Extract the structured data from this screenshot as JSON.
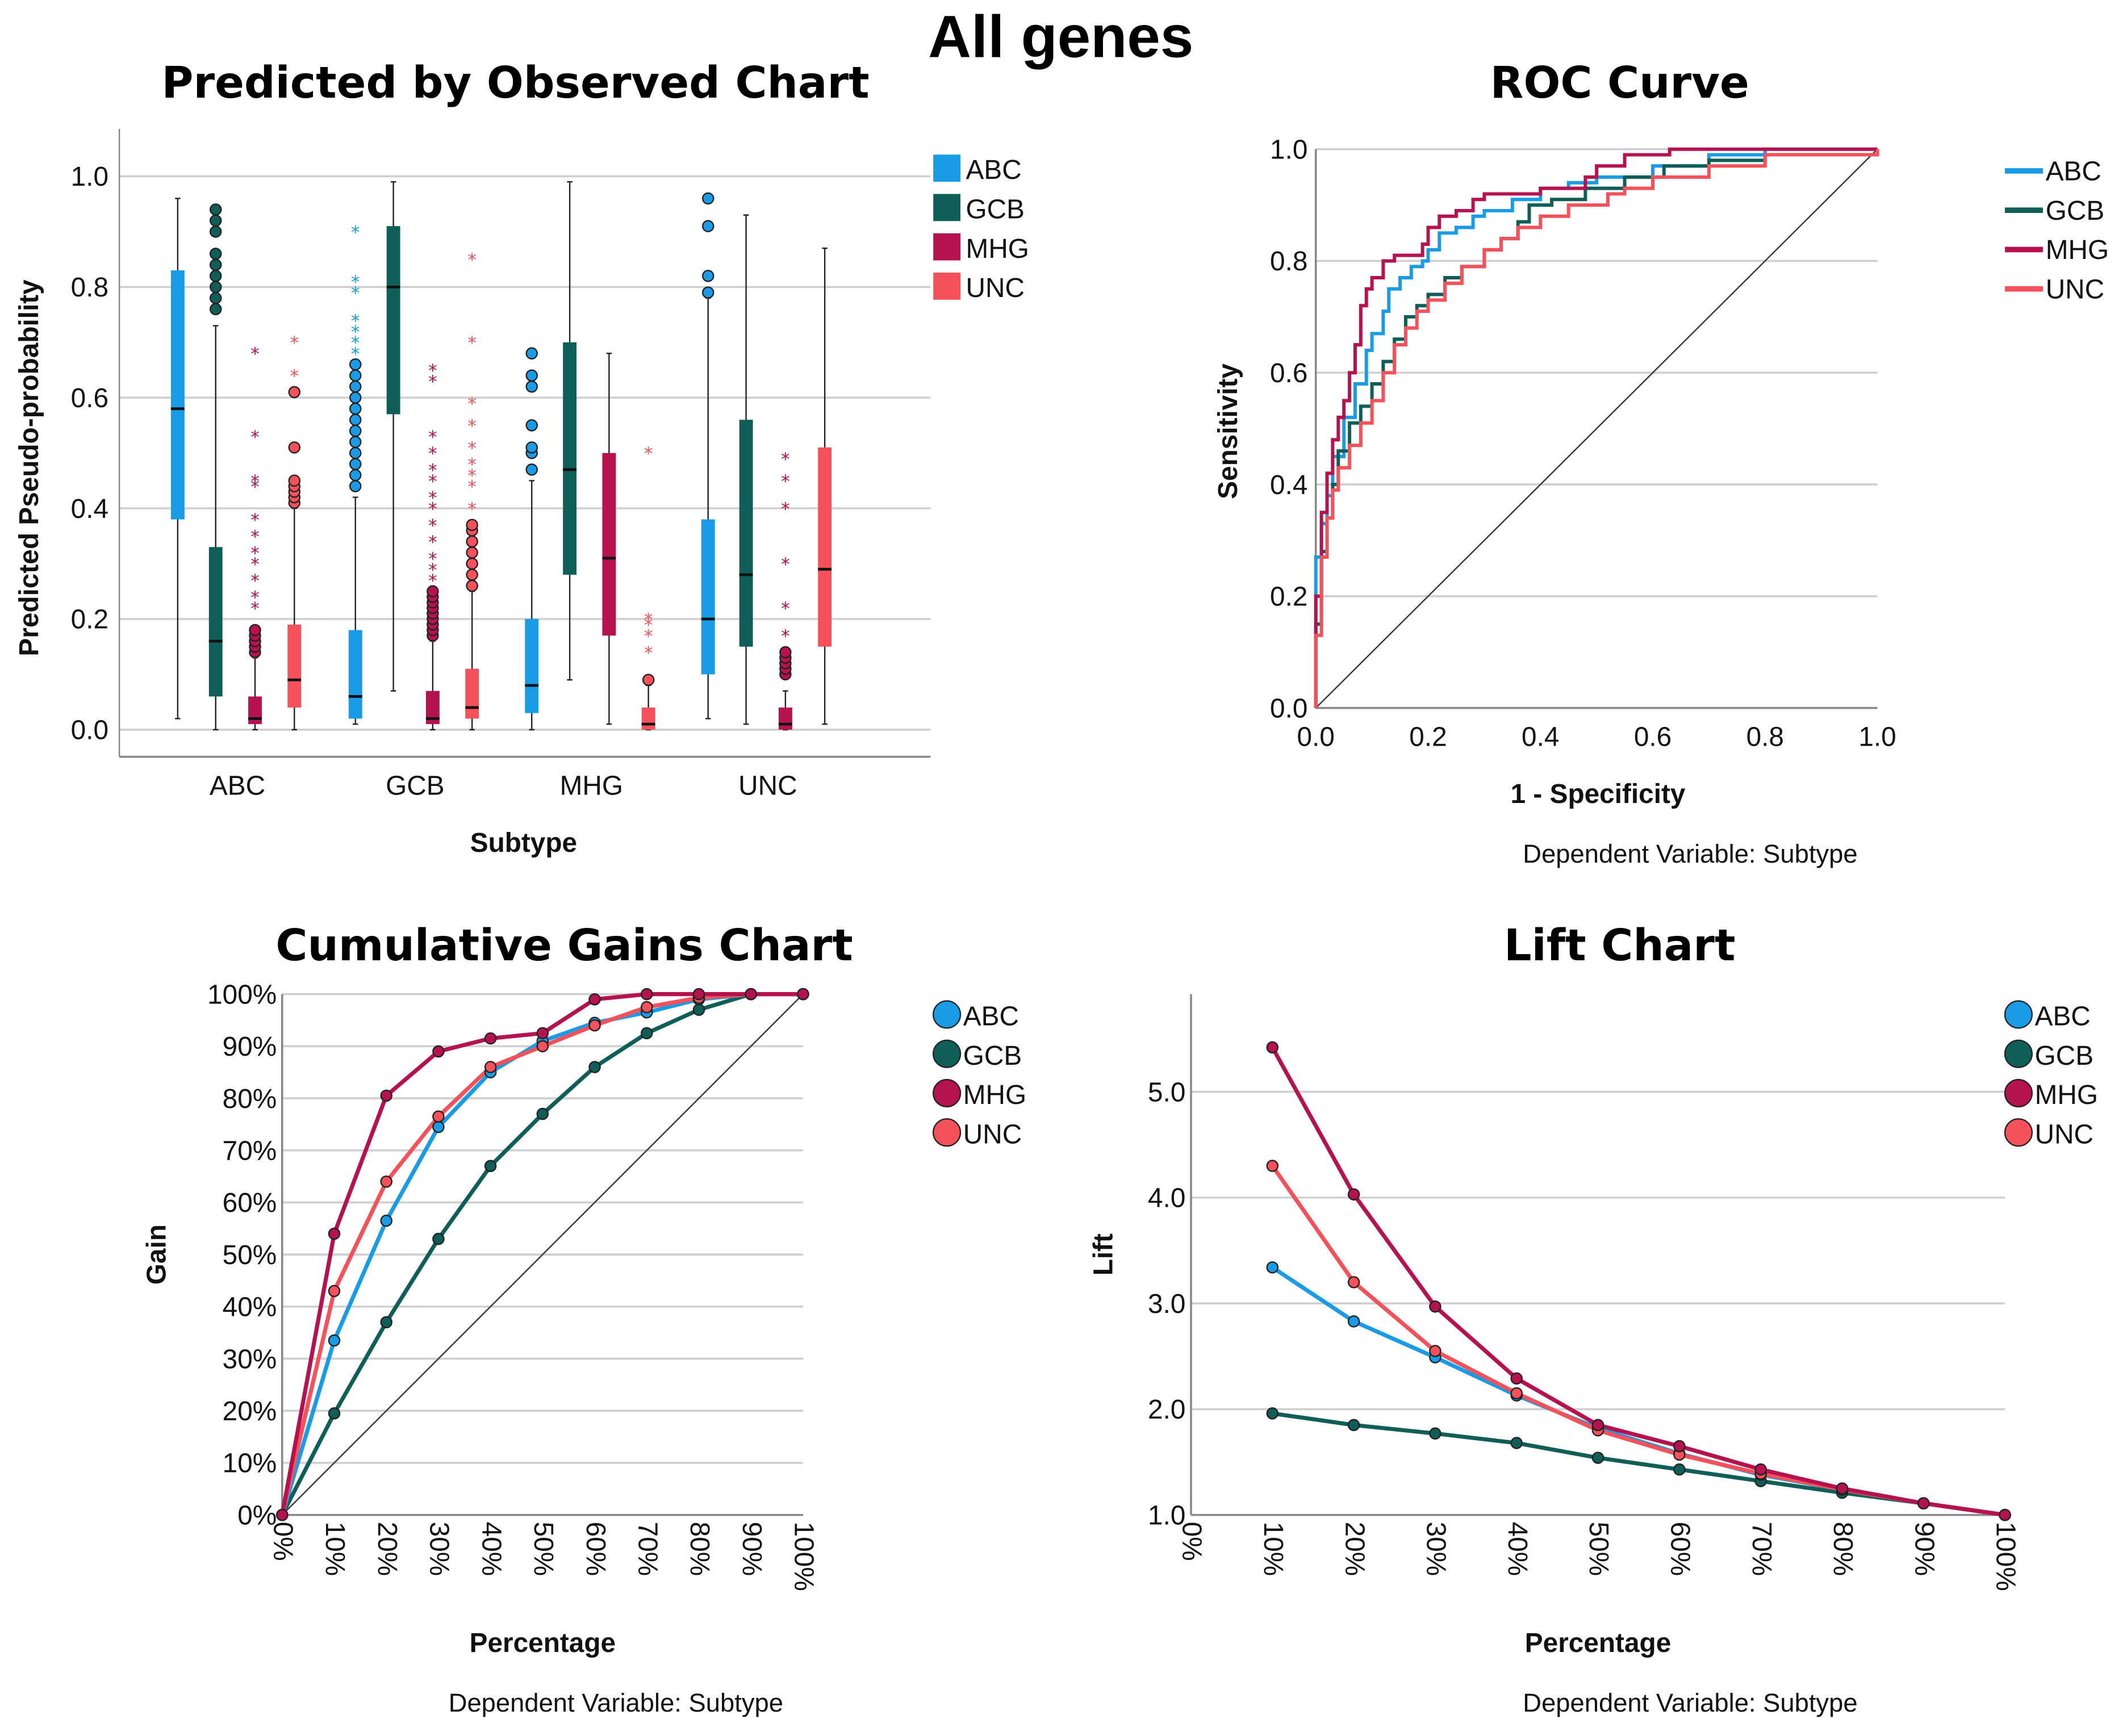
{
  "page_title": "All genes",
  "colors": {
    "ABC": "#1a9be6",
    "GCB": "#0f5f58",
    "MHG": "#b5124f",
    "UNC": "#f5515a"
  },
  "legend": [
    "ABC",
    "GCB",
    "MHG",
    "UNC"
  ],
  "chart_data": [
    {
      "id": "boxplot",
      "type": "box",
      "title": "Predicted by Observed Chart",
      "xlabel": "Subtype",
      "ylabel": "Predicted Pseudo-probability",
      "categories": [
        "ABC",
        "GCB",
        "MHG",
        "UNC"
      ],
      "ylim": [
        -0.05,
        1.05
      ],
      "yticks": [
        "0.0",
        "0.2",
        "0.4",
        "0.6",
        "0.8",
        "1.0"
      ],
      "grid": true,
      "legend_position": "top-right",
      "series": [
        {
          "name": "ABC",
          "boxes": [
            {
              "min": 0.02,
              "q1": 0.38,
              "median": 0.58,
              "q3": 0.83,
              "max": 0.96,
              "outliers": [],
              "extremes": []
            },
            {
              "min": 0.01,
              "q1": 0.02,
              "median": 0.06,
              "q3": 0.18,
              "max": 0.42,
              "outliers": [
                0.44,
                0.46,
                0.48,
                0.5,
                0.52,
                0.54,
                0.56,
                0.58,
                0.6,
                0.62,
                0.64,
                0.66
              ],
              "extremes": [
                0.68,
                0.7,
                0.72,
                0.74,
                0.79,
                0.81,
                0.9
              ]
            },
            {
              "min": 0.0,
              "q1": 0.03,
              "median": 0.08,
              "q3": 0.2,
              "max": 0.45,
              "outliers": [
                0.47,
                0.5,
                0.51,
                0.55,
                0.62,
                0.64,
                0.68
              ],
              "extremes": []
            },
            {
              "min": 0.02,
              "q1": 0.1,
              "median": 0.2,
              "q3": 0.38,
              "max": 0.78,
              "outliers": [
                0.79,
                0.82,
                0.91,
                0.96
              ],
              "extremes": []
            }
          ]
        },
        {
          "name": "GCB",
          "boxes": [
            {
              "min": 0.0,
              "q1": 0.06,
              "median": 0.16,
              "q3": 0.33,
              "max": 0.73,
              "outliers": [
                0.76,
                0.78,
                0.8,
                0.82,
                0.84,
                0.86,
                0.9,
                0.92,
                0.94
              ],
              "extremes": []
            },
            {
              "min": 0.07,
              "q1": 0.57,
              "median": 0.8,
              "q3": 0.91,
              "max": 0.99,
              "outliers": [],
              "extremes": []
            },
            {
              "min": 0.09,
              "q1": 0.28,
              "median": 0.47,
              "q3": 0.7,
              "max": 0.99,
              "outliers": [],
              "extremes": []
            },
            {
              "min": 0.01,
              "q1": 0.15,
              "median": 0.28,
              "q3": 0.56,
              "max": 0.93,
              "outliers": [],
              "extremes": []
            }
          ]
        },
        {
          "name": "MHG",
          "boxes": [
            {
              "min": 0.0,
              "q1": 0.01,
              "median": 0.02,
              "q3": 0.06,
              "max": 0.13,
              "outliers": [
                0.14,
                0.15,
                0.16,
                0.17,
                0.18
              ],
              "extremes": [
                0.22,
                0.24,
                0.27,
                0.3,
                0.32,
                0.35,
                0.38,
                0.44,
                0.45,
                0.53,
                0.68
              ]
            },
            {
              "min": 0.0,
              "q1": 0.01,
              "median": 0.02,
              "q3": 0.07,
              "max": 0.16,
              "outliers": [
                0.17,
                0.18,
                0.19,
                0.2,
                0.21,
                0.22,
                0.23,
                0.24,
                0.25
              ],
              "extremes": [
                0.27,
                0.29,
                0.31,
                0.34,
                0.37,
                0.4,
                0.42,
                0.45,
                0.47,
                0.5,
                0.53,
                0.63,
                0.65
              ]
            },
            {
              "min": 0.01,
              "q1": 0.17,
              "median": 0.31,
              "q3": 0.5,
              "max": 0.68,
              "outliers": [],
              "extremes": []
            },
            {
              "min": 0.0,
              "q1": 0.0,
              "median": 0.01,
              "q3": 0.04,
              "max": 0.07,
              "outliers": [
                0.1,
                0.11,
                0.12,
                0.13,
                0.14
              ],
              "extremes": [
                0.17,
                0.22,
                0.3,
                0.4,
                0.45,
                0.49
              ]
            }
          ]
        },
        {
          "name": "UNC",
          "boxes": [
            {
              "min": 0.0,
              "q1": 0.04,
              "median": 0.09,
              "q3": 0.19,
              "max": 0.4,
              "outliers": [
                0.41,
                0.42,
                0.43,
                0.44,
                0.45,
                0.51,
                0.61
              ],
              "extremes": [
                0.64,
                0.7
              ]
            },
            {
              "min": 0.0,
              "q1": 0.02,
              "median": 0.04,
              "q3": 0.11,
              "max": 0.25,
              "outliers": [
                0.26,
                0.28,
                0.3,
                0.32,
                0.34,
                0.36,
                0.37
              ],
              "extremes": [
                0.4,
                0.44,
                0.46,
                0.48,
                0.51,
                0.55,
                0.59,
                0.7,
                0.85
              ]
            },
            {
              "min": 0.0,
              "q1": 0.0,
              "median": 0.01,
              "q3": 0.04,
              "max": 0.08,
              "outliers": [
                0.09
              ],
              "extremes": [
                0.14,
                0.17,
                0.19,
                0.2,
                0.5
              ]
            },
            {
              "min": 0.01,
              "q1": 0.15,
              "median": 0.29,
              "q3": 0.51,
              "max": 0.87,
              "outliers": [],
              "extremes": []
            }
          ]
        }
      ]
    },
    {
      "id": "roc",
      "type": "line",
      "title": "ROC Curve",
      "xlabel": "1 - Specificity",
      "ylabel": "Sensitivity",
      "note": "Dependent Variable: Subtype",
      "xlim": [
        0,
        1
      ],
      "ylim": [
        0,
        1
      ],
      "xticks": [
        "0.0",
        "0.2",
        "0.4",
        "0.6",
        "0.8",
        "1.0"
      ],
      "yticks": [
        "0.0",
        "0.2",
        "0.4",
        "0.6",
        "0.8",
        "1.0"
      ],
      "grid": true,
      "legend_position": "top-right",
      "diagonal": true,
      "series": [
        {
          "name": "ABC",
          "x": [
            0,
            0,
            0.01,
            0.02,
            0.03,
            0.05,
            0.07,
            0.09,
            0.1,
            0.12,
            0.13,
            0.15,
            0.17,
            0.19,
            0.2,
            0.22,
            0.25,
            0.28,
            0.3,
            0.35,
            0.4,
            0.45,
            0.5,
            0.6,
            0.7,
            0.8,
            1.0
          ],
          "y": [
            0,
            0.27,
            0.33,
            0.38,
            0.45,
            0.52,
            0.58,
            0.64,
            0.67,
            0.71,
            0.75,
            0.77,
            0.79,
            0.8,
            0.82,
            0.85,
            0.86,
            0.88,
            0.89,
            0.91,
            0.93,
            0.94,
            0.95,
            0.97,
            0.99,
            1.0,
            1.0
          ]
        },
        {
          "name": "GCB",
          "x": [
            0,
            0,
            0.01,
            0.02,
            0.03,
            0.04,
            0.06,
            0.08,
            0.1,
            0.12,
            0.14,
            0.16,
            0.18,
            0.2,
            0.23,
            0.26,
            0.3,
            0.33,
            0.36,
            0.38,
            0.42,
            0.48,
            0.55,
            0.62,
            0.7,
            0.8,
            1.0
          ],
          "y": [
            0,
            0.15,
            0.28,
            0.34,
            0.4,
            0.46,
            0.51,
            0.54,
            0.58,
            0.62,
            0.66,
            0.7,
            0.72,
            0.74,
            0.77,
            0.79,
            0.82,
            0.84,
            0.87,
            0.9,
            0.91,
            0.93,
            0.95,
            0.97,
            0.98,
            0.99,
            1.0
          ]
        },
        {
          "name": "MHG",
          "x": [
            0,
            0,
            0.01,
            0.02,
            0.03,
            0.04,
            0.05,
            0.06,
            0.07,
            0.08,
            0.09,
            0.1,
            0.12,
            0.14,
            0.17,
            0.19,
            0.2,
            0.22,
            0.25,
            0.28,
            0.3,
            0.35,
            0.4,
            0.45,
            0.48,
            0.5,
            0.55,
            0.63,
            0.8,
            1.0
          ],
          "y": [
            0,
            0.2,
            0.35,
            0.42,
            0.48,
            0.52,
            0.55,
            0.6,
            0.65,
            0.72,
            0.75,
            0.77,
            0.8,
            0.81,
            0.81,
            0.83,
            0.86,
            0.88,
            0.89,
            0.91,
            0.92,
            0.92,
            0.93,
            0.93,
            0.95,
            0.97,
            0.99,
            1.0,
            1.0,
            1.0
          ]
        },
        {
          "name": "UNC",
          "x": [
            0,
            0,
            0.01,
            0.02,
            0.03,
            0.04,
            0.06,
            0.08,
            0.1,
            0.12,
            0.14,
            0.16,
            0.18,
            0.2,
            0.23,
            0.26,
            0.3,
            0.33,
            0.36,
            0.4,
            0.45,
            0.5,
            0.52,
            0.55,
            0.6,
            0.7,
            0.8,
            1.0
          ],
          "y": [
            0,
            0.13,
            0.27,
            0.34,
            0.39,
            0.43,
            0.47,
            0.51,
            0.55,
            0.6,
            0.65,
            0.68,
            0.71,
            0.73,
            0.76,
            0.79,
            0.82,
            0.84,
            0.86,
            0.88,
            0.9,
            0.9,
            0.92,
            0.93,
            0.95,
            0.97,
            0.99,
            1.0
          ]
        }
      ]
    },
    {
      "id": "gains",
      "type": "line",
      "title": "Cumulative Gains Chart",
      "xlabel": "Percentage",
      "ylabel": "Gain",
      "note": "Dependent Variable: Subtype",
      "xlim": [
        0,
        100
      ],
      "ylim": [
        0,
        100
      ],
      "xticks": [
        "0%",
        "10%",
        "20%",
        "30%",
        "40%",
        "50%",
        "60%",
        "70%",
        "80%",
        "90%",
        "100%"
      ],
      "yticks": [
        "0%",
        "10%",
        "20%",
        "30%",
        "40%",
        "50%",
        "60%",
        "70%",
        "80%",
        "90%",
        "100%"
      ],
      "grid": true,
      "legend_position": "top-right",
      "diagonal": true,
      "x": [
        0,
        10,
        20,
        30,
        40,
        50,
        60,
        70,
        80,
        90,
        100
      ],
      "series": [
        {
          "name": "ABC",
          "values": [
            0,
            33.5,
            56.5,
            74.5,
            85,
            91,
            94.5,
            96.5,
            99,
            100,
            100
          ]
        },
        {
          "name": "GCB",
          "values": [
            0,
            19.5,
            37,
            53,
            67,
            77,
            86,
            92.5,
            97,
            100,
            100
          ]
        },
        {
          "name": "MHG",
          "values": [
            0,
            54,
            80.5,
            89,
            91.5,
            92.5,
            99,
            100,
            100,
            100,
            100
          ]
        },
        {
          "name": "UNC",
          "values": [
            0,
            43,
            64,
            76.5,
            86,
            90,
            94,
            97.5,
            99.3,
            100,
            100
          ]
        }
      ]
    },
    {
      "id": "lift",
      "type": "line",
      "title": "Lift Chart",
      "xlabel": "Percentage",
      "ylabel": "Lift",
      "note": "Dependent Variable: Subtype",
      "xlim": [
        0,
        100
      ],
      "ylim": [
        1.0,
        5.9
      ],
      "xticks": [
        "0%",
        "10%",
        "20%",
        "30%",
        "40%",
        "50%",
        "60%",
        "70%",
        "80%",
        "90%",
        "100%"
      ],
      "yticks": [
        "1.0",
        "2.0",
        "3.0",
        "4.0",
        "5.0"
      ],
      "grid": true,
      "legend_position": "top-right",
      "x": [
        10,
        20,
        30,
        40,
        50,
        60,
        70,
        80,
        90,
        100
      ],
      "series": [
        {
          "name": "ABC",
          "values": [
            3.34,
            2.83,
            2.49,
            2.13,
            1.82,
            1.58,
            1.38,
            1.24,
            1.11,
            1.0
          ]
        },
        {
          "name": "GCB",
          "values": [
            1.96,
            1.85,
            1.77,
            1.68,
            1.54,
            1.43,
            1.32,
            1.21,
            1.11,
            1.0
          ]
        },
        {
          "name": "MHG",
          "values": [
            5.42,
            4.03,
            2.97,
            2.29,
            1.85,
            1.65,
            1.43,
            1.25,
            1.11,
            1.0
          ]
        },
        {
          "name": "UNC",
          "values": [
            4.3,
            3.2,
            2.55,
            2.15,
            1.8,
            1.57,
            1.39,
            1.24,
            1.11,
            1.0
          ]
        }
      ]
    }
  ]
}
